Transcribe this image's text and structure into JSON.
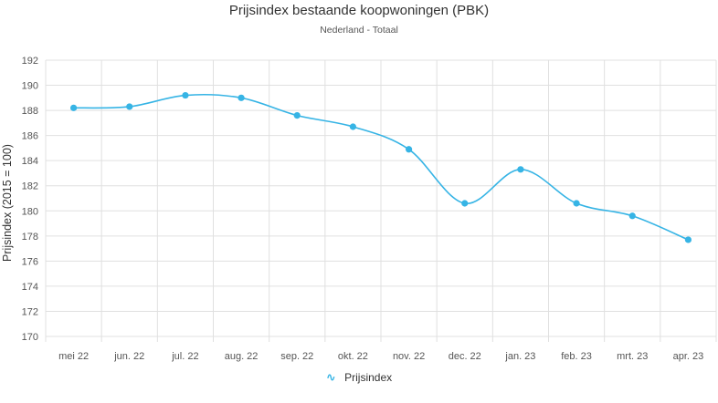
{
  "chart_data": {
    "type": "line",
    "title": "Prijsindex bestaande koopwoningen (PBK)",
    "subtitle": "Nederland - Totaal",
    "xlabel": "",
    "ylabel": "Prijsindex (2015 = 100)",
    "categories": [
      "mei 22",
      "jun. 22",
      "jul. 22",
      "aug. 22",
      "sep. 22",
      "okt. 22",
      "nov. 22",
      "dec. 22",
      "jan. 23",
      "feb. 23",
      "mrt. 23",
      "apr. 23"
    ],
    "series": [
      {
        "name": "Prijsindex",
        "values": [
          188.2,
          188.3,
          189.2,
          189.0,
          187.6,
          186.7,
          184.9,
          180.6,
          183.3,
          180.6,
          179.6,
          177.7
        ]
      }
    ],
    "ylim": [
      170,
      192
    ],
    "yticks": [
      170,
      172,
      174,
      176,
      178,
      180,
      182,
      184,
      186,
      188,
      190,
      192
    ],
    "grid": true,
    "legend_position": "bottom-center",
    "line_color": "#36b4e5",
    "grid_color": "#e0e0e0"
  }
}
